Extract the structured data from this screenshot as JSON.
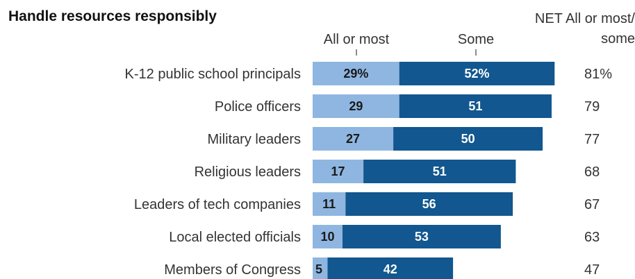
{
  "header": {
    "title": "Handle resources responsibly",
    "col_all_or_most": "All or most",
    "col_some": "Some",
    "col_net_line1": "NET All or most/",
    "col_net_line2": "some"
  },
  "colors": {
    "all_or_most": "#8fb6e0",
    "some": "#12578f"
  },
  "chart_data": {
    "type": "bar",
    "stacked": true,
    "orientation": "horizontal",
    "title": "Handle resources responsibly",
    "categories": [
      "K-12 public school principals",
      "Police officers",
      "Military leaders",
      "Religious leaders",
      "Leaders of tech companies",
      "Local elected officials",
      "Members of Congress"
    ],
    "series": [
      {
        "name": "All or most",
        "values": [
          29,
          29,
          27,
          17,
          11,
          10,
          5
        ],
        "labels": [
          "29%",
          "29",
          "27",
          "17",
          "11",
          "10",
          "5"
        ]
      },
      {
        "name": "Some",
        "values": [
          52,
          51,
          50,
          51,
          56,
          53,
          42
        ],
        "labels": [
          "52%",
          "51",
          "50",
          "51",
          "56",
          "53",
          "42"
        ]
      }
    ],
    "net_header": "NET All or most/ some",
    "net": [
      "81%",
      "79",
      "77",
      "68",
      "67",
      "63",
      "47"
    ]
  }
}
